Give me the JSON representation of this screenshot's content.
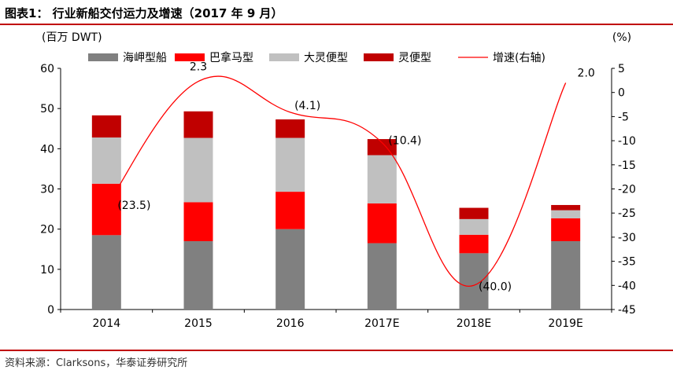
{
  "title": "图表1：  行业新船交付运力及增速（2017 年 9 月）",
  "source": "资料来源：Clarksons，华泰证券研究所",
  "chart_data": {
    "type": "bar",
    "stacked": true,
    "categories": [
      "2014",
      "2015",
      "2016",
      "2017E",
      "2018E",
      "2019E"
    ],
    "left_axis": {
      "unit_label": "(百万 DWT)",
      "ylim": [
        0,
        60
      ],
      "ticks": [
        0,
        10,
        20,
        30,
        40,
        50,
        60
      ]
    },
    "right_axis": {
      "unit_label": "(%)",
      "ylim": [
        -45,
        5
      ],
      "ticks": [
        5,
        0,
        -5,
        -10,
        -15,
        -20,
        -25,
        -30,
        -35,
        -40,
        -45
      ]
    },
    "legend_position": "top",
    "series": [
      {
        "name": "海岬型船",
        "color": "#808080",
        "values": [
          18.5,
          17.0,
          20.0,
          16.5,
          14.0,
          17.0
        ]
      },
      {
        "name": "巴拿马型",
        "color": "#ff0000",
        "values": [
          12.8,
          9.7,
          9.3,
          9.9,
          4.6,
          5.7
        ]
      },
      {
        "name": "大灵便型",
        "color": "#c0c0c0",
        "values": [
          11.5,
          16.0,
          13.4,
          12.0,
          3.9,
          2.0
        ]
      },
      {
        "name": "灵便型",
        "color": "#c00000",
        "values": [
          5.5,
          6.6,
          4.6,
          4.0,
          2.8,
          1.3
        ]
      }
    ],
    "line_series": {
      "name": "增速(右轴)",
      "color": "#ff0000",
      "axis": "right",
      "values": [
        -23.5,
        2.3,
        -4.1,
        -10.4,
        -40.0,
        2.0
      ],
      "labels": [
        "(23.5)",
        "2.3",
        "(4.1)",
        "(10.4)",
        "(40.0)",
        "2.0"
      ]
    },
    "grid": false
  }
}
